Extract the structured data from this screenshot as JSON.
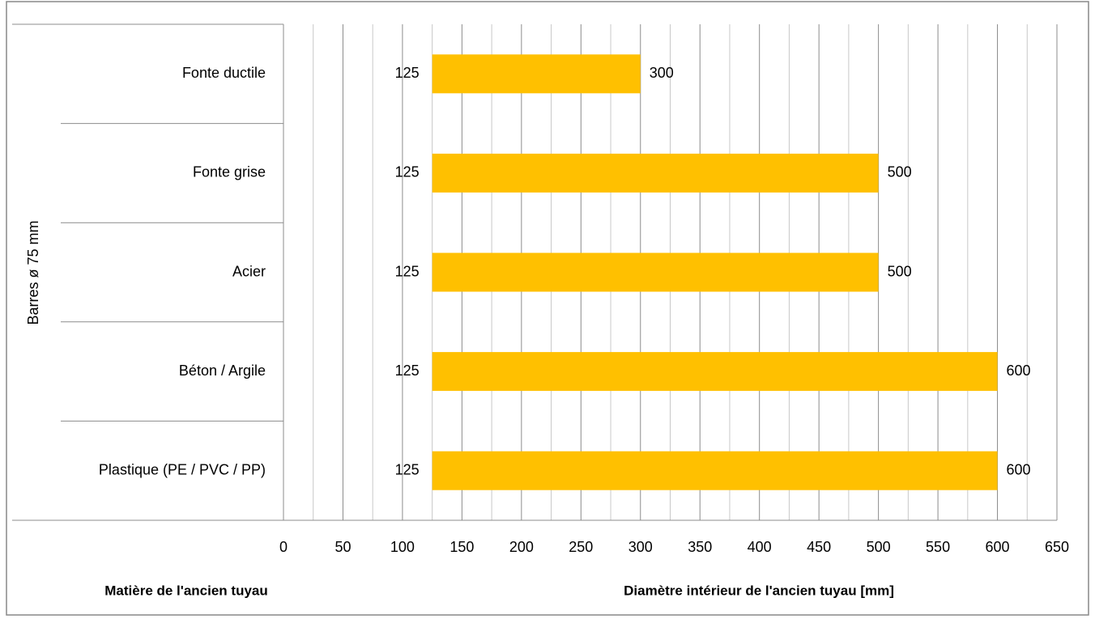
{
  "chart_data": {
    "type": "floating-bar",
    "group_label": "Barres ø 75 mm",
    "categories": [
      "Fonte ductile",
      "Fonte grise",
      "Acier",
      "Béton / Argile",
      "Plastique (PE / PVC / PP)"
    ],
    "low": [
      125,
      125,
      125,
      125,
      125
    ],
    "values": [
      300,
      500,
      500,
      600,
      600
    ],
    "color": "#ffc000",
    "xlim": [
      0,
      650
    ],
    "xticks": [
      0,
      50,
      100,
      150,
      200,
      250,
      300,
      350,
      400,
      450,
      500,
      550,
      600,
      650
    ],
    "xminorticks": [
      25,
      75,
      125,
      175,
      225,
      275,
      325,
      375,
      425,
      475,
      525,
      575,
      625
    ],
    "grid": true,
    "category_axis_title": "Matière de l'ancien tuyau",
    "x_axis_title": "Diamètre intérieur de l'ancien tuyau [mm]"
  }
}
